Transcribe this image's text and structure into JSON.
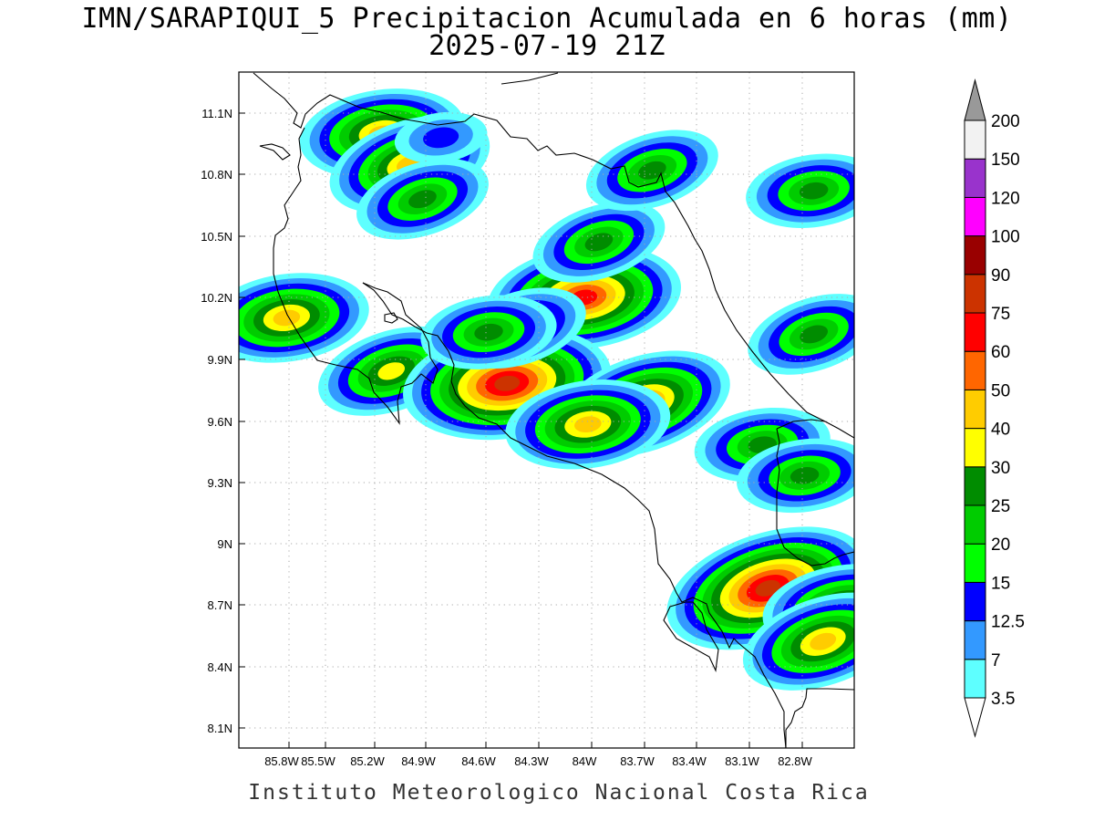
{
  "title": {
    "line1": "IMN/SARAPIQUI_5 Precipitacion Acumulada en 6 horas (mm)",
    "line2": "2025-07-19 21Z"
  },
  "footer": "Instituto Meteorologico Nacional Costa Rica",
  "map": {
    "lon_labels": [
      "85.8W",
      "85.5W",
      "85.2W",
      "84.9W",
      "84.6W",
      "84.3W",
      "84W",
      "83.7W",
      "83.4W",
      "83.1W",
      "82.8W"
    ],
    "lat_labels": [
      "11.1N",
      "10.8N",
      "10.5N",
      "10.2N",
      "9.9N",
      "9.6N",
      "9.3N",
      "9N",
      "8.7N",
      "8.4N",
      "8.1N"
    ],
    "grid": "dotted",
    "coastlines": true
  },
  "colorbar": {
    "units": "mm",
    "levels": [
      "3.5",
      "7",
      "12.5",
      "15",
      "20",
      "25",
      "30",
      "40",
      "50",
      "60",
      "75",
      "90",
      "100",
      "120",
      "150",
      "200"
    ],
    "colors": [
      "#ffffff",
      "#5effff",
      "#3399ff",
      "#0000ff",
      "#00ff00",
      "#00cc00",
      "#008c00",
      "#ffff00",
      "#ffcc00",
      "#ff6600",
      "#ff0000",
      "#cc3300",
      "#990000",
      "#ff00ff",
      "#9933cc",
      "#f2f2f2",
      "#999999"
    ]
  },
  "precipitation_cells": [
    {
      "lon": -85.2,
      "lat": 11.0,
      "max_mm": 40
    },
    {
      "lon": -85.05,
      "lat": 10.85,
      "max_mm": 40
    },
    {
      "lon": -84.88,
      "lat": 10.98,
      "max_mm": 12.5
    },
    {
      "lon": -84.98,
      "lat": 10.68,
      "max_mm": 25
    },
    {
      "lon": -84.1,
      "lat": 10.2,
      "max_mm": 60
    },
    {
      "lon": -84.02,
      "lat": 10.47,
      "max_mm": 25
    },
    {
      "lon": -85.72,
      "lat": 10.1,
      "max_mm": 40
    },
    {
      "lon": -85.15,
      "lat": 9.84,
      "max_mm": 30
    },
    {
      "lon": -84.52,
      "lat": 9.78,
      "max_mm": 75
    },
    {
      "lon": -84.45,
      "lat": 10.05,
      "max_mm": 25
    },
    {
      "lon": -84.62,
      "lat": 10.03,
      "max_mm": 25
    },
    {
      "lon": -83.78,
      "lat": 9.68,
      "max_mm": 50
    },
    {
      "lon": -84.08,
      "lat": 9.58,
      "max_mm": 40
    },
    {
      "lon": -83.1,
      "lat": 8.78,
      "max_mm": 75
    },
    {
      "lon": -82.68,
      "lat": 8.68,
      "max_mm": 40
    },
    {
      "lon": -82.8,
      "lat": 8.52,
      "max_mm": 40
    },
    {
      "lon": -82.85,
      "lat": 10.72,
      "max_mm": 25
    },
    {
      "lon": -82.85,
      "lat": 10.02,
      "max_mm": 25
    },
    {
      "lon": -83.13,
      "lat": 9.48,
      "max_mm": 25
    },
    {
      "lon": -83.73,
      "lat": 10.82,
      "max_mm": 25
    },
    {
      "lon": -82.9,
      "lat": 9.33,
      "max_mm": 25
    }
  ]
}
